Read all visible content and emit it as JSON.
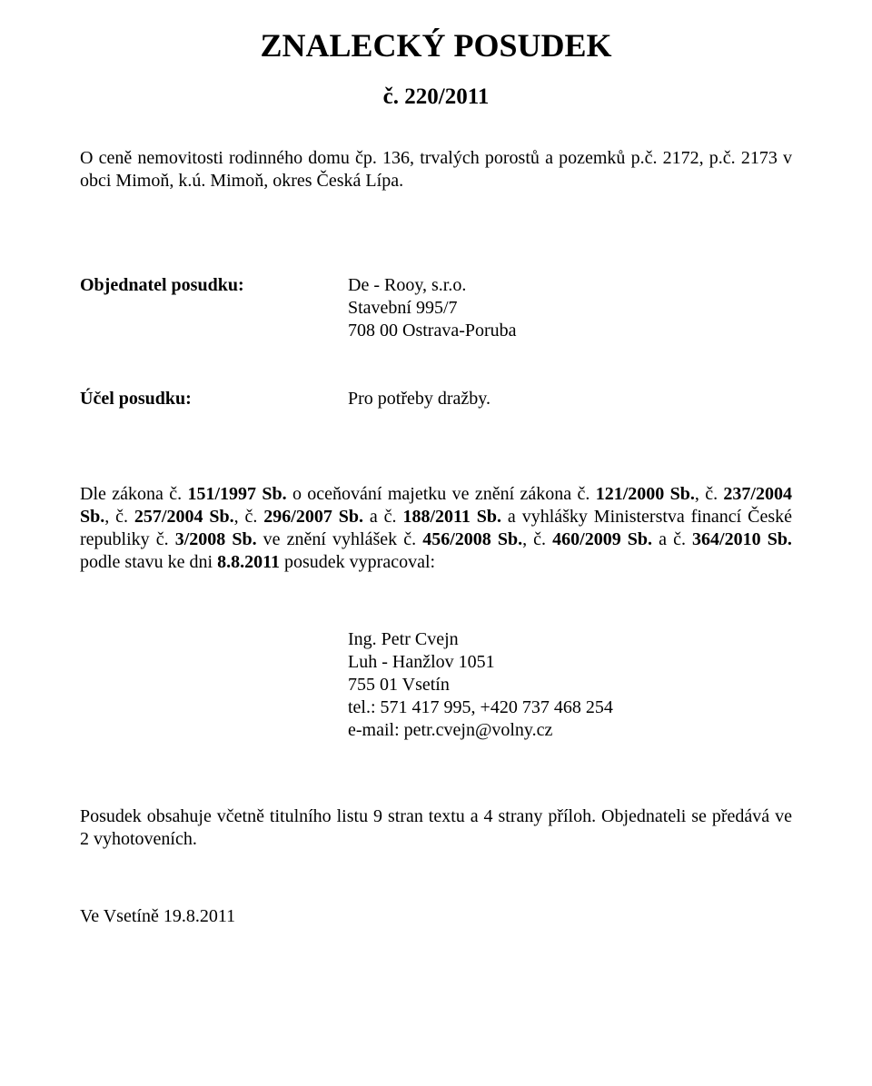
{
  "title": "ZNALECKÝ  POSUDEK",
  "doc_number": "č. 220/2011",
  "intro": "O ceně nemovitosti rodinného domu čp. 136, trvalých porostů a pozemků p.č. 2172, p.č. 2173 v obci Mimoň, k.ú. Mimoň, okres Česká Lípa.",
  "client": {
    "label": "Objednatel posudku:",
    "name": "De - Rooy, s.r.o.",
    "address1": "Stavební 995/7",
    "address2": "708 00 Ostrava-Poruba"
  },
  "purpose": {
    "label": "Účel posudku:",
    "text": "Pro potřeby dražby."
  },
  "law": {
    "prefix": "Dle zákona č. ",
    "b1": "151/1997 Sb.",
    "mid1": " o oceňování majetku ve znění zákona č. ",
    "b2": "121/2000 Sb.",
    "mid2": ", č. ",
    "b3": "237/2004 Sb.",
    "mid3": ", č. ",
    "b4": "257/2004 Sb.",
    "mid4": ", č. ",
    "b5": "296/2007 Sb.",
    "mid5": " a č. ",
    "b6": "188/2011 Sb.",
    "mid6": " a vyhlášky Ministerstva financí České republiky č. ",
    "b7": "3/2008 Sb.",
    "mid7": " ve znění vyhlášek č. ",
    "b8": "456/2008 Sb.",
    "mid8": ", č. ",
    "b9": "460/2009 Sb.",
    "mid9": " a č. ",
    "b10": "364/2010 Sb.",
    "mid10": " podle stavu ke dni ",
    "b11": "8.8.2011",
    "suffix": " posudek vypracoval:"
  },
  "author": {
    "name": "Ing. Petr Cvejn",
    "addr1": "Luh - Hanžlov 1051",
    "addr2": "755 01 Vsetín",
    "tel": "tel.: 571 417 995, +420 737 468 254",
    "email": "e-mail: petr.cvejn@volny.cz"
  },
  "footnote": "Posudek obsahuje včetně titulního listu 9 stran textu a 4 strany příloh. Objednateli se předává ve 2 vyhotoveních.",
  "date_place": "Ve Vsetíně 19.8.2011"
}
